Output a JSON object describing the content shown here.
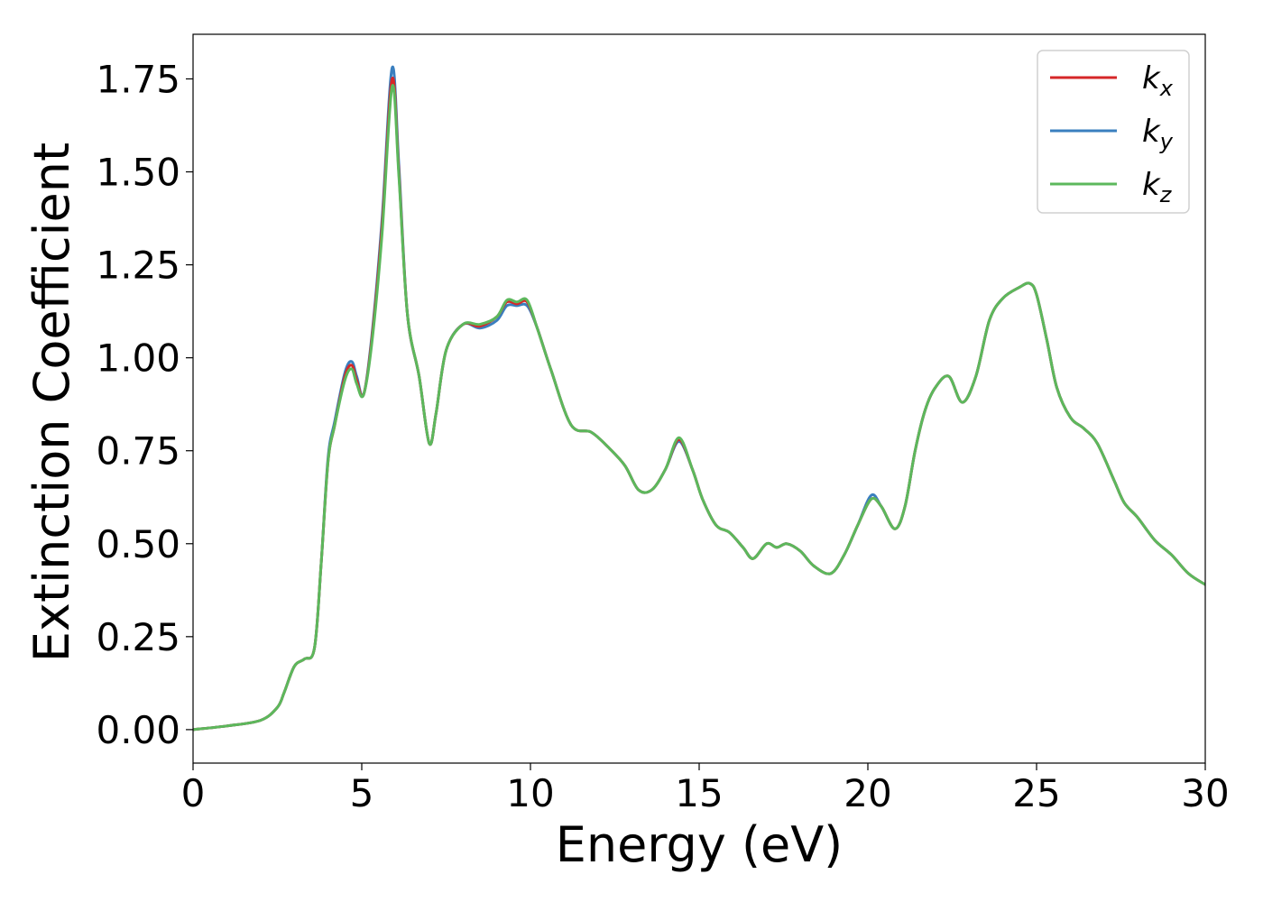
{
  "chart_data": {
    "type": "line",
    "title": "",
    "xlabel": "Energy (eV)",
    "ylabel": "Extinction Coefficient",
    "xlim": [
      0,
      30
    ],
    "ylim": [
      -0.09,
      1.87
    ],
    "grid": false,
    "legend_position": "top-right",
    "x_ticks": [
      0,
      5,
      10,
      15,
      20,
      25,
      30
    ],
    "x_tick_labels": [
      "0",
      "5",
      "10",
      "15",
      "20",
      "25",
      "30"
    ],
    "y_ticks": [
      0.0,
      0.25,
      0.5,
      0.75,
      1.0,
      1.25,
      1.5,
      1.75
    ],
    "y_tick_labels": [
      "0.00",
      "0.25",
      "0.50",
      "0.75",
      "1.00",
      "1.25",
      "1.50",
      "1.75"
    ],
    "series": [
      {
        "name": "k_x",
        "label_base": "k",
        "label_sub": "x",
        "color": "#d62728",
        "x": [
          0,
          1,
          2,
          2.5,
          2.7,
          3.0,
          3.3,
          3.6,
          3.8,
          4.0,
          4.2,
          4.5,
          4.7,
          4.85,
          5.05,
          5.3,
          5.6,
          5.9,
          6.1,
          6.35,
          6.7,
          7.0,
          7.2,
          7.5,
          8.0,
          8.5,
          9.0,
          9.3,
          9.6,
          9.9,
          10.2,
          10.6,
          11.2,
          11.8,
          12.3,
          12.8,
          13.2,
          13.6,
          14.0,
          14.4,
          14.8,
          15.1,
          15.5,
          15.9,
          16.3,
          16.6,
          17.0,
          17.3,
          17.6,
          18.0,
          18.4,
          18.9,
          19.3,
          19.7,
          20.1,
          20.4,
          20.8,
          21.1,
          21.4,
          21.7,
          22.0,
          22.4,
          22.8,
          23.2,
          23.6,
          24.0,
          24.5,
          24.8,
          25.0,
          25.3,
          25.6,
          26.0,
          26.4,
          26.8,
          27.3,
          27.6,
          28.0,
          28.5,
          29.0,
          29.5,
          30.0
        ],
        "y": [
          0.0,
          0.01,
          0.025,
          0.06,
          0.1,
          0.17,
          0.19,
          0.22,
          0.45,
          0.72,
          0.82,
          0.95,
          0.98,
          0.94,
          0.9,
          1.05,
          1.35,
          1.75,
          1.5,
          1.12,
          0.95,
          0.77,
          0.85,
          1.02,
          1.09,
          1.085,
          1.11,
          1.15,
          1.145,
          1.15,
          1.08,
          0.97,
          0.82,
          0.8,
          0.76,
          0.71,
          0.645,
          0.645,
          0.7,
          0.78,
          0.7,
          0.62,
          0.55,
          0.53,
          0.49,
          0.46,
          0.5,
          0.49,
          0.5,
          0.48,
          0.44,
          0.42,
          0.47,
          0.55,
          0.62,
          0.6,
          0.54,
          0.6,
          0.75,
          0.86,
          0.92,
          0.95,
          0.88,
          0.95,
          1.1,
          1.16,
          1.19,
          1.2,
          1.17,
          1.05,
          0.92,
          0.84,
          0.81,
          0.77,
          0.67,
          0.61,
          0.57,
          0.51,
          0.47,
          0.42,
          0.39
        ]
      },
      {
        "name": "k_y",
        "label_base": "k",
        "label_sub": "y",
        "color": "#3a7fbf",
        "x": [
          0,
          1,
          2,
          2.5,
          2.7,
          3.0,
          3.3,
          3.6,
          3.8,
          4.0,
          4.2,
          4.5,
          4.7,
          4.85,
          5.05,
          5.3,
          5.6,
          5.9,
          6.1,
          6.35,
          6.7,
          7.0,
          7.2,
          7.5,
          8.0,
          8.5,
          9.0,
          9.3,
          9.6,
          9.9,
          10.2,
          10.6,
          11.2,
          11.8,
          12.3,
          12.8,
          13.2,
          13.6,
          14.0,
          14.4,
          14.8,
          15.1,
          15.5,
          15.9,
          16.3,
          16.6,
          17.0,
          17.3,
          17.6,
          18.0,
          18.4,
          18.9,
          19.3,
          19.7,
          20.1,
          20.4,
          20.8,
          21.1,
          21.4,
          21.7,
          22.0,
          22.4,
          22.8,
          23.2,
          23.6,
          24.0,
          24.5,
          24.8,
          25.0,
          25.3,
          25.6,
          26.0,
          26.4,
          26.8,
          27.3,
          27.6,
          28.0,
          28.5,
          29.0,
          29.5,
          30.0
        ],
        "y": [
          0.0,
          0.01,
          0.025,
          0.06,
          0.1,
          0.17,
          0.19,
          0.22,
          0.45,
          0.73,
          0.83,
          0.96,
          0.99,
          0.95,
          0.9,
          1.06,
          1.37,
          1.78,
          1.52,
          1.12,
          0.95,
          0.77,
          0.85,
          1.02,
          1.09,
          1.08,
          1.1,
          1.14,
          1.14,
          1.14,
          1.08,
          0.97,
          0.82,
          0.8,
          0.76,
          0.71,
          0.645,
          0.645,
          0.7,
          0.775,
          0.7,
          0.62,
          0.55,
          0.53,
          0.49,
          0.46,
          0.5,
          0.49,
          0.5,
          0.48,
          0.44,
          0.42,
          0.47,
          0.55,
          0.63,
          0.6,
          0.54,
          0.6,
          0.75,
          0.86,
          0.92,
          0.95,
          0.88,
          0.95,
          1.1,
          1.16,
          1.19,
          1.2,
          1.17,
          1.05,
          0.92,
          0.84,
          0.81,
          0.77,
          0.67,
          0.61,
          0.57,
          0.51,
          0.47,
          0.42,
          0.39
        ]
      },
      {
        "name": "k_z",
        "label_base": "k",
        "label_sub": "z",
        "color": "#5cb85c",
        "x": [
          0,
          1,
          2,
          2.5,
          2.7,
          3.0,
          3.3,
          3.6,
          3.8,
          4.0,
          4.2,
          4.5,
          4.7,
          4.85,
          5.05,
          5.3,
          5.6,
          5.9,
          6.1,
          6.35,
          6.7,
          7.0,
          7.2,
          7.5,
          8.0,
          8.5,
          9.0,
          9.3,
          9.6,
          9.9,
          10.2,
          10.6,
          11.2,
          11.8,
          12.3,
          12.8,
          13.2,
          13.6,
          14.0,
          14.4,
          14.8,
          15.1,
          15.5,
          15.9,
          16.3,
          16.6,
          17.0,
          17.3,
          17.6,
          18.0,
          18.4,
          18.9,
          19.3,
          19.7,
          20.1,
          20.4,
          20.8,
          21.1,
          21.4,
          21.7,
          22.0,
          22.4,
          22.8,
          23.2,
          23.6,
          24.0,
          24.5,
          24.8,
          25.0,
          25.3,
          25.6,
          26.0,
          26.4,
          26.8,
          27.3,
          27.6,
          28.0,
          28.5,
          29.0,
          29.5,
          30.0
        ],
        "y": [
          0.0,
          0.01,
          0.025,
          0.06,
          0.1,
          0.17,
          0.19,
          0.22,
          0.45,
          0.72,
          0.82,
          0.94,
          0.97,
          0.93,
          0.9,
          1.04,
          1.33,
          1.73,
          1.49,
          1.12,
          0.95,
          0.77,
          0.85,
          1.02,
          1.09,
          1.09,
          1.11,
          1.155,
          1.15,
          1.155,
          1.08,
          0.97,
          0.82,
          0.8,
          0.76,
          0.71,
          0.645,
          0.645,
          0.7,
          0.785,
          0.7,
          0.62,
          0.55,
          0.53,
          0.49,
          0.46,
          0.5,
          0.49,
          0.5,
          0.48,
          0.44,
          0.42,
          0.47,
          0.55,
          0.62,
          0.6,
          0.54,
          0.6,
          0.75,
          0.86,
          0.92,
          0.95,
          0.88,
          0.95,
          1.1,
          1.16,
          1.19,
          1.2,
          1.17,
          1.05,
          0.92,
          0.84,
          0.81,
          0.77,
          0.67,
          0.61,
          0.57,
          0.51,
          0.47,
          0.42,
          0.39
        ]
      }
    ]
  }
}
